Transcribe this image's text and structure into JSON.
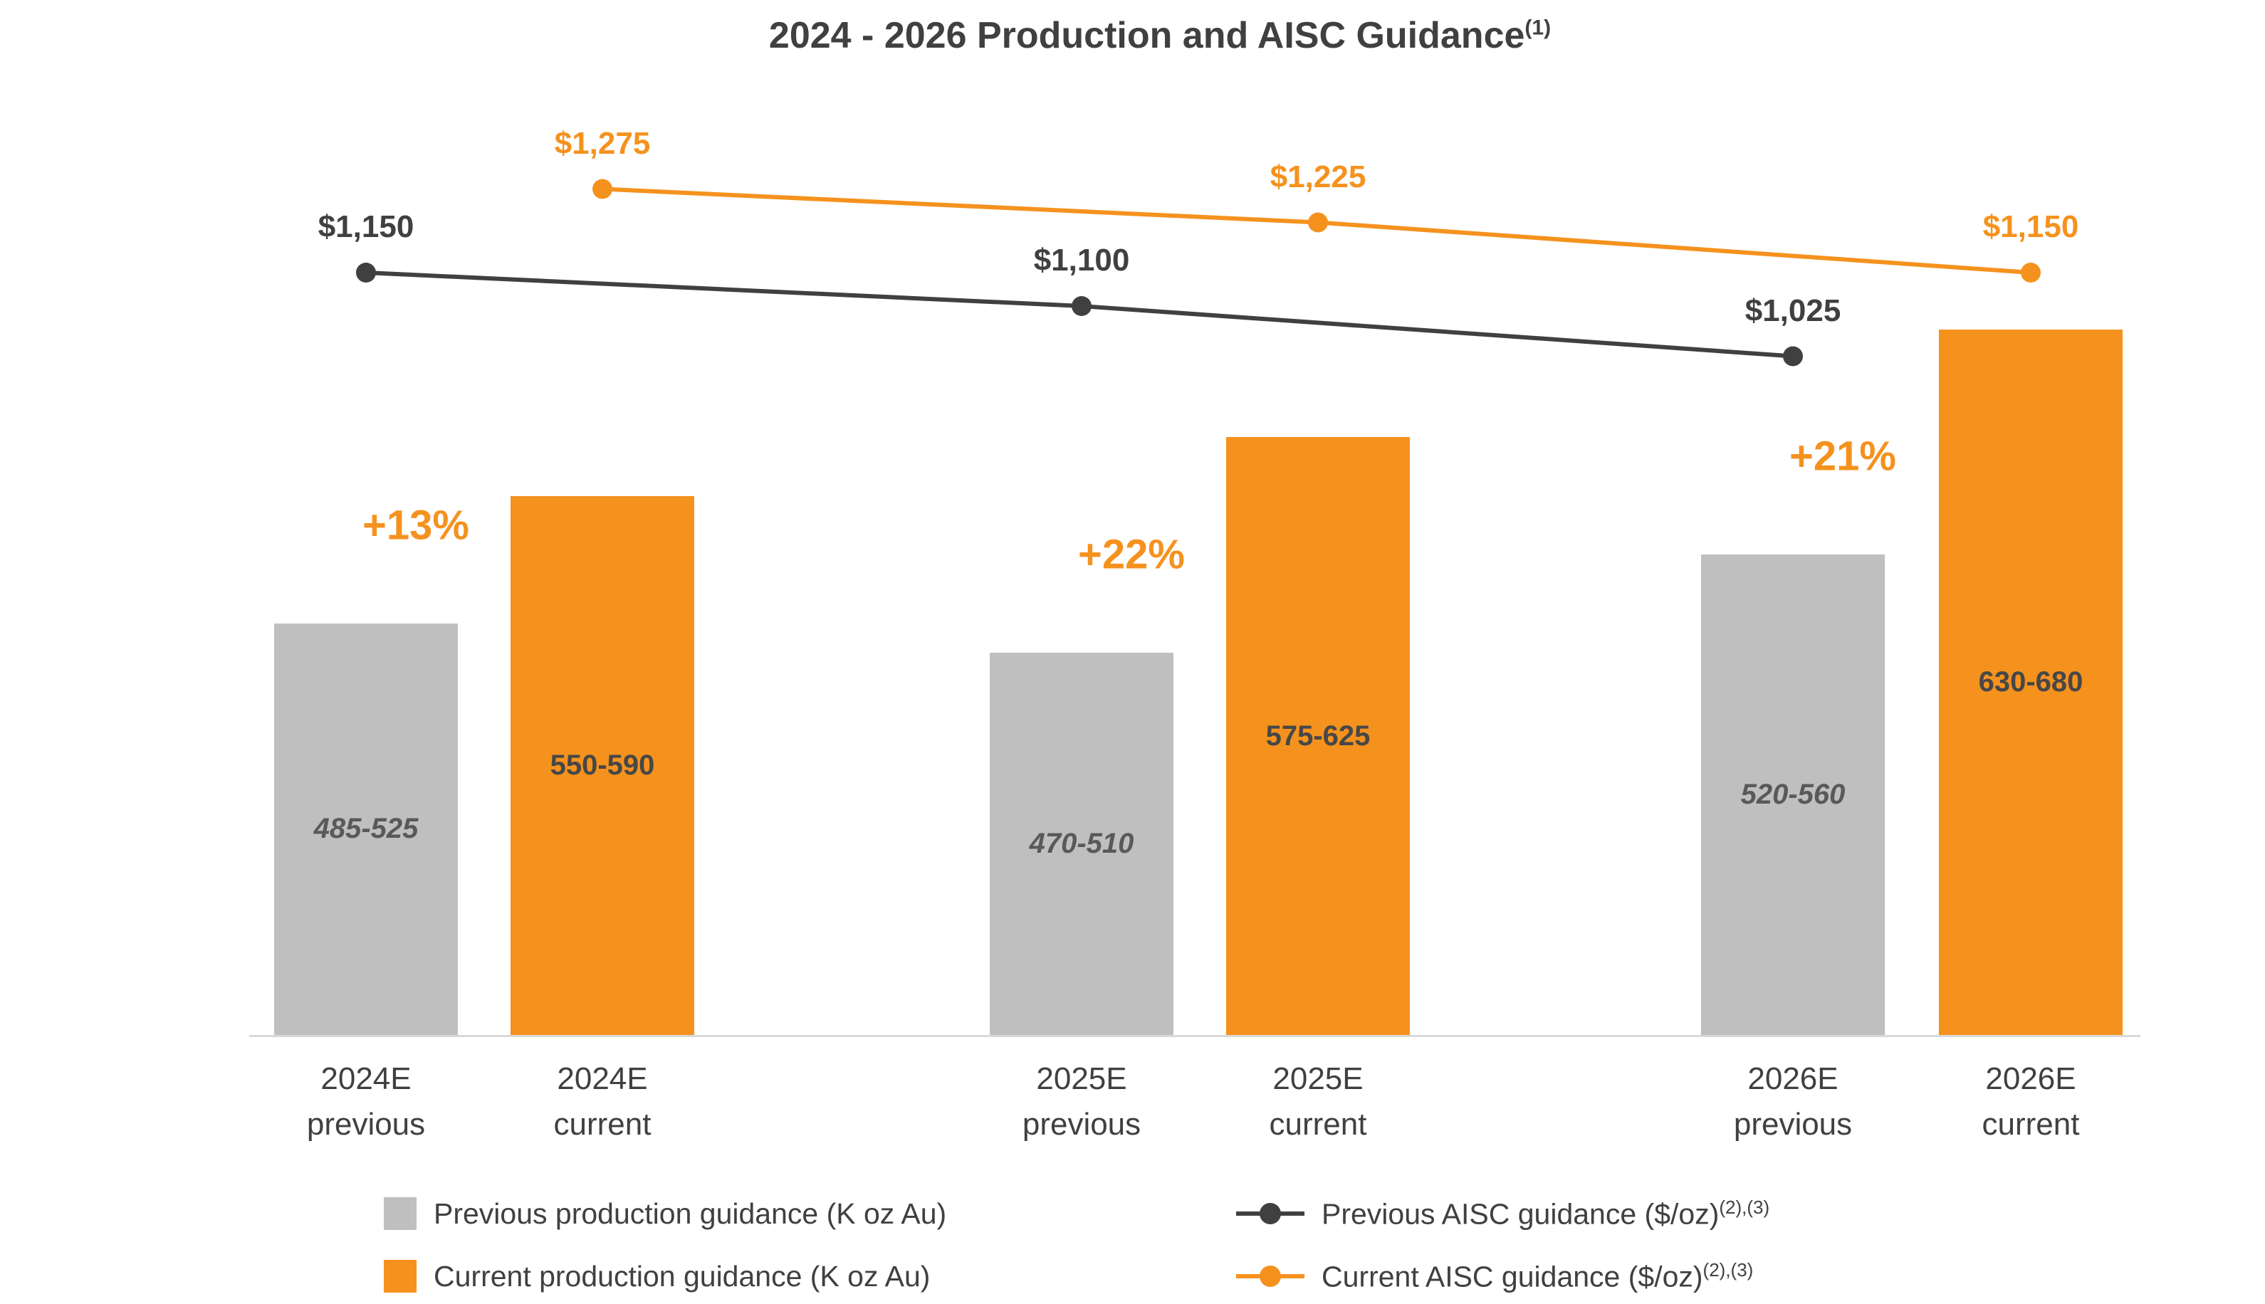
{
  "title": {
    "text": "2024 - 2026 Production and AISC Guidance",
    "superscript": "(1)"
  },
  "colors": {
    "orange": "#F5921E",
    "gray": "#BFBFBF",
    "dark": "#404040",
    "axis": "#D9D9D9"
  },
  "chart_data": {
    "type": "combo: grouped bar + line",
    "title": "2024 - 2026 Production and AISC Guidance",
    "bar_unit": "K oz Au",
    "line_unit": "$/oz",
    "legend_position": "bottom",
    "gridlines": false,
    "y_axis_visible": false,
    "x_tick_labels": [
      [
        "2024E",
        "previous"
      ],
      [
        "2024E",
        "current"
      ],
      [
        "2025E",
        "previous"
      ],
      [
        "2025E",
        "current"
      ],
      [
        "2026E",
        "previous"
      ],
      [
        "2026E",
        "current"
      ]
    ],
    "groups": [
      {
        "year_label": "2024E",
        "previous_bar": {
          "range_label": "485-525",
          "low": 485,
          "high": 525
        },
        "current_bar": {
          "range_label": "550-590",
          "low": 550,
          "high": 590
        },
        "change_label": "+13%",
        "previous_aisc": {
          "value": 1150,
          "label": "$1,150"
        },
        "current_aisc": {
          "value": 1275,
          "label": "$1,275"
        }
      },
      {
        "year_label": "2025E",
        "previous_bar": {
          "range_label": "470-510",
          "low": 470,
          "high": 510
        },
        "current_bar": {
          "range_label": "575-625",
          "low": 575,
          "high": 625
        },
        "change_label": "+22%",
        "previous_aisc": {
          "value": 1100,
          "label": "$1,100"
        },
        "current_aisc": {
          "value": 1225,
          "label": "$1,225"
        }
      },
      {
        "year_label": "2026E",
        "previous_bar": {
          "range_label": "520-560",
          "low": 520,
          "high": 560
        },
        "current_bar": {
          "range_label": "630-680",
          "low": 630,
          "high": 680
        },
        "change_label": "+21%",
        "previous_aisc": {
          "value": 1025,
          "label": "$1,025"
        },
        "current_aisc": {
          "value": 1150,
          "label": "$1,150"
        }
      }
    ],
    "series_names": [
      "Previous production guidance (K oz Au)",
      "Current production guidance (K oz Au)",
      "Previous AISC guidance ($/oz)",
      "Current AISC guidance ($/oz)"
    ]
  },
  "legend": {
    "items": [
      {
        "marker": "square-gray",
        "label": "Previous production guidance (K oz Au)",
        "sup": ""
      },
      {
        "marker": "square-orange",
        "label": "Current production guidance (K oz Au)",
        "sup": ""
      },
      {
        "marker": "line-dark",
        "label": "Previous AISC guidance ($/oz)",
        "sup": "(2),(3)"
      },
      {
        "marker": "line-orange",
        "label": "Current AISC guidance ($/oz)",
        "sup": "(2),(3)"
      }
    ]
  }
}
